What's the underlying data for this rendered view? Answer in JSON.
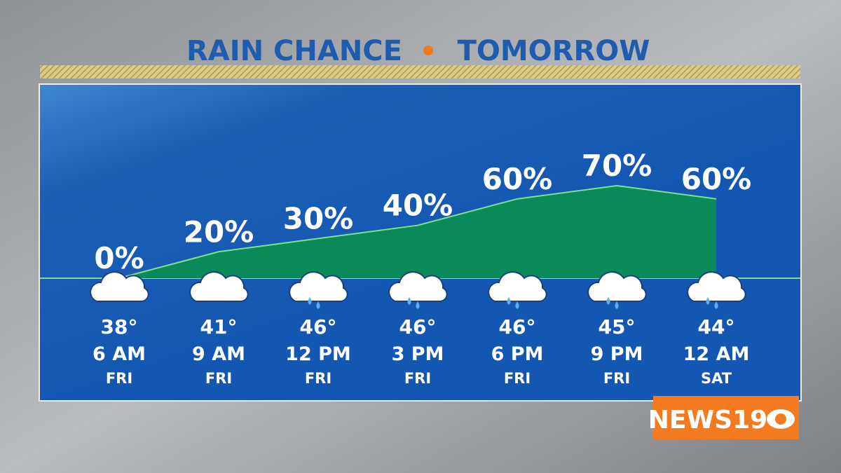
{
  "chart_data": {
    "type": "area",
    "title": "RAIN CHANCE",
    "subtitle": "TOMORROW",
    "categories": [
      "6 AM",
      "9 AM",
      "12 PM",
      "3 PM",
      "6 PM",
      "9 PM",
      "12 AM"
    ],
    "days": [
      "FRI",
      "FRI",
      "FRI",
      "FRI",
      "FRI",
      "FRI",
      "SAT"
    ],
    "temperatures": [
      "38°",
      "41°",
      "46°",
      "46°",
      "46°",
      "45°",
      "44°"
    ],
    "values": [
      0,
      20,
      30,
      40,
      60,
      70,
      60
    ],
    "value_labels": [
      "0%",
      "20%",
      "30%",
      "40%",
      "60%",
      "70%",
      "60%"
    ],
    "color": "#0a8a58",
    "logo": "NEWS19"
  }
}
